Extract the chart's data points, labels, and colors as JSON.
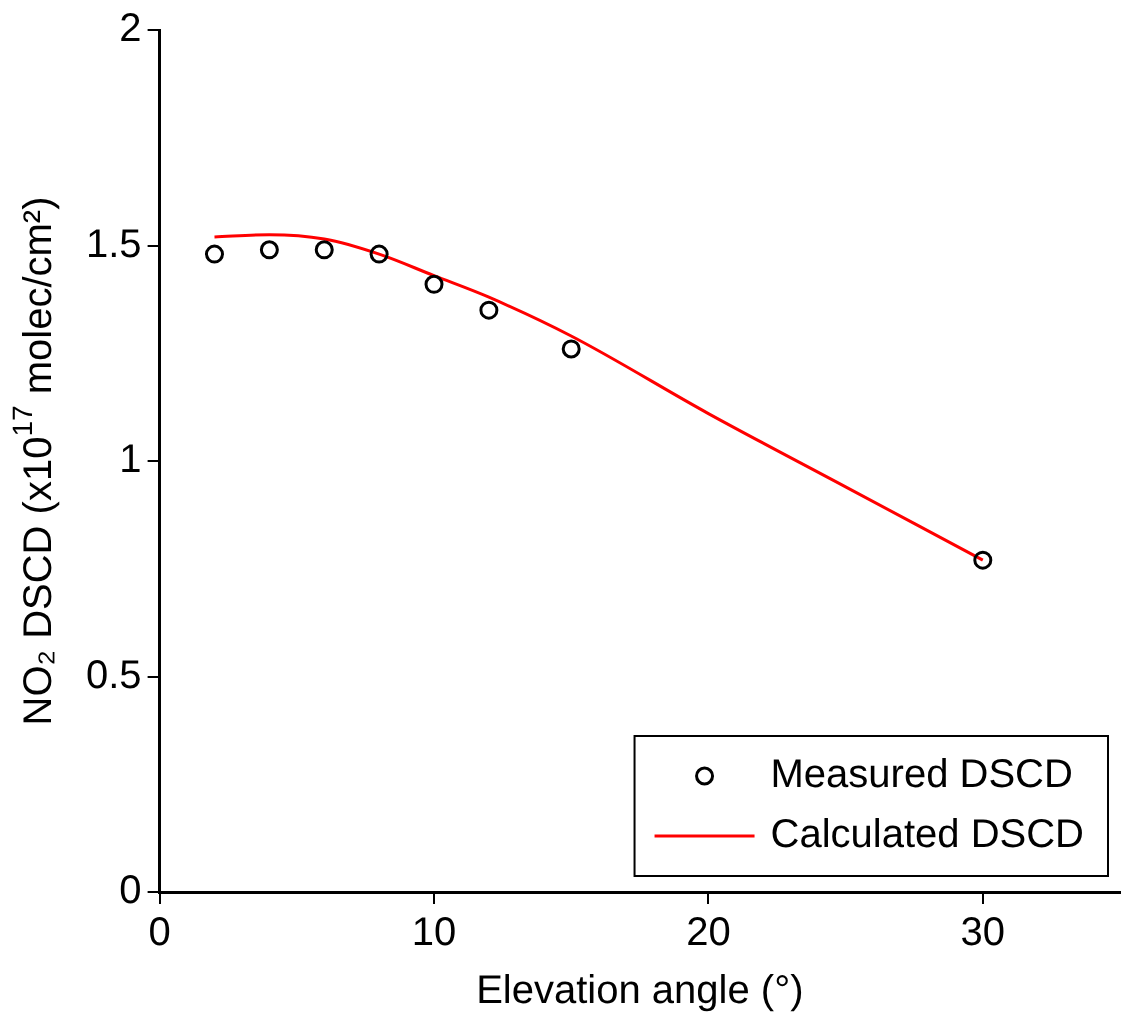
{
  "chart_data": {
    "type": "scatter",
    "xlabel": "Elevation angle (°)",
    "ylabel": "NO₂ DSCD (x10$^{17}$ molec/cm²)",
    "xlim": [
      0,
      35
    ],
    "xticks": [
      0,
      10,
      20,
      30
    ],
    "ylim": [
      0,
      2
    ],
    "yticks": [
      0,
      0.5,
      1,
      1.5,
      2
    ],
    "grid": false,
    "legend": "bottom right",
    "series": [
      {
        "name": "Measured DSCD",
        "color": "#000000",
        "marker": "circle",
        "x": [
          2,
          4,
          6,
          8,
          10,
          12,
          15,
          30
        ],
        "values": [
          1.48,
          1.49,
          1.49,
          1.48,
          1.41,
          1.35,
          1.26,
          0.77
        ]
      },
      {
        "name": "Calculated DSCD",
        "type": "line",
        "color": "#ff0000",
        "marker": "none",
        "line_style": "solid",
        "x": [
          2,
          4,
          6,
          8,
          10,
          12,
          15,
          20,
          25,
          30
        ],
        "values": [
          1.52,
          1.525,
          1.515,
          1.48,
          1.43,
          1.38,
          1.29,
          1.11,
          0.94,
          0.77
        ]
      }
    ]
  }
}
